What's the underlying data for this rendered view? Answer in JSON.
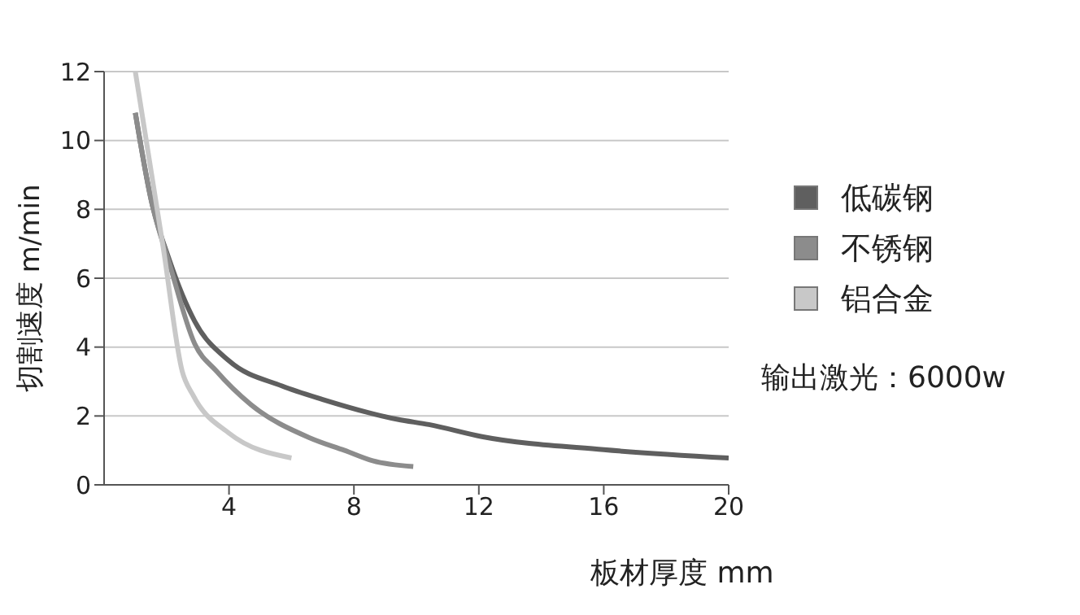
{
  "chart_data": {
    "type": "line",
    "xlabel": "板材厚度 mm",
    "ylabel": "切割速度 m/min",
    "annotations": [
      "输出激光：6000w"
    ],
    "xlim": [
      0,
      20
    ],
    "xticks": [
      4,
      8,
      12,
      16,
      20
    ],
    "ylim": [
      0,
      12
    ],
    "yticks": [
      0,
      2,
      4,
      6,
      8,
      10,
      12
    ],
    "grid": "y",
    "legend": "right",
    "marker": "none",
    "line_style": "solid",
    "series": [
      {
        "name": "低碳钢",
        "color": "#5f5f5f",
        "x": [
          1.0,
          1.5,
          2.1,
          2.9,
          4.0,
          5.7,
          7.0,
          9.4,
          10.4,
          12.1,
          16,
          20
        ],
        "values": [
          10.8,
          8.3,
          6.5,
          4.75,
          3.6,
          2.87,
          2.48,
          1.9,
          1.75,
          1.4,
          1.02,
          0.78
        ]
      },
      {
        "name": "不锈钢",
        "color": "#8c8c8c",
        "x": [
          1.0,
          1.5,
          2.1,
          2.9,
          3.6,
          4.7,
          6.6,
          7.7,
          8.6,
          9.9
        ],
        "values": [
          10.8,
          8.3,
          6.4,
          4.1,
          3.3,
          2.33,
          1.36,
          1.0,
          0.7,
          0.53
        ]
      },
      {
        "name": "铝合金",
        "color": "#c8c8c8",
        "x": [
          1.0,
          1.9,
          2.5,
          2.85,
          4.0,
          6.0
        ],
        "values": [
          12,
          6.85,
          3.3,
          2.6,
          1.5,
          0.78
        ]
      }
    ]
  }
}
